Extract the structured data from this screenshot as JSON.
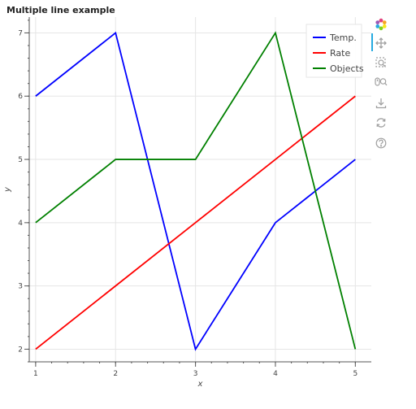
{
  "title": "Multiple line example",
  "chart_data": {
    "type": "line",
    "x": [
      1,
      2,
      3,
      4,
      5
    ],
    "series": [
      {
        "name": "Temp.",
        "color": "#0000ff",
        "values": [
          6,
          7,
          2,
          4,
          5
        ]
      },
      {
        "name": "Rate",
        "color": "#ff0000",
        "values": [
          2,
          3,
          4,
          5,
          6
        ]
      },
      {
        "name": "Objects",
        "color": "#008000",
        "values": [
          4,
          5,
          5,
          7,
          2
        ]
      }
    ],
    "xlabel": "x",
    "ylabel": "y",
    "xlim": [
      0.92,
      5.2
    ],
    "ylim": [
      1.8,
      7.25
    ],
    "xticks": [
      "1",
      "2",
      "3",
      "4",
      "5"
    ],
    "yticks": [
      "2",
      "3",
      "4",
      "5",
      "6",
      "7"
    ],
    "grid": true,
    "legend_position": "top-right"
  },
  "toolbar": {
    "tools": [
      {
        "icon": "bokeh-logo-icon"
      },
      {
        "icon": "pan-icon"
      },
      {
        "icon": "box-zoom-icon"
      },
      {
        "icon": "wheel-zoom-icon"
      },
      {
        "icon": "save-icon"
      },
      {
        "icon": "reset-icon"
      },
      {
        "icon": "help-icon"
      }
    ]
  }
}
